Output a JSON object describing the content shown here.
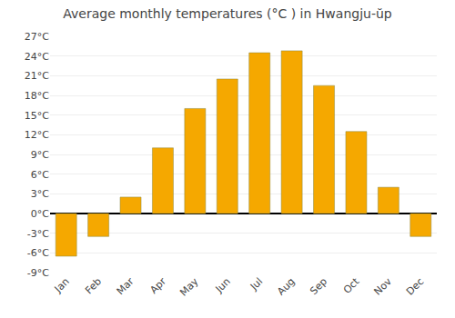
{
  "chart_data": {
    "type": "bar",
    "title": "Average monthly temperatures (°C ) in Hwangju-ŭp",
    "categories": [
      "Jan",
      "Feb",
      "Mar",
      "Apr",
      "May",
      "Jun",
      "Jul",
      "Aug",
      "Sep",
      "Oct",
      "Nov",
      "Dec"
    ],
    "values": [
      -6.5,
      -3.5,
      2.5,
      10.0,
      16.0,
      20.5,
      24.5,
      24.8,
      19.5,
      12.5,
      4.0,
      -3.5
    ],
    "color": "#F5A800",
    "ylim": [
      -9,
      27
    ],
    "yticks": [
      {
        "value": -9,
        "label": "-9°C"
      },
      {
        "value": -6,
        "label": "-6°C"
      },
      {
        "value": -3,
        "label": "-3°C"
      },
      {
        "value": 0,
        "label": "0°C"
      },
      {
        "value": 3,
        "label": "3°C"
      },
      {
        "value": 6,
        "label": "6°C"
      },
      {
        "value": 9,
        "label": "9°C"
      },
      {
        "value": 12,
        "label": "12°C"
      },
      {
        "value": 15,
        "label": "15°C"
      },
      {
        "value": 18,
        "label": "18°C"
      },
      {
        "value": 21,
        "label": "21°C"
      },
      {
        "value": 24,
        "label": "24°C"
      },
      {
        "value": 27,
        "label": "27°C"
      }
    ],
    "grid": true
  }
}
